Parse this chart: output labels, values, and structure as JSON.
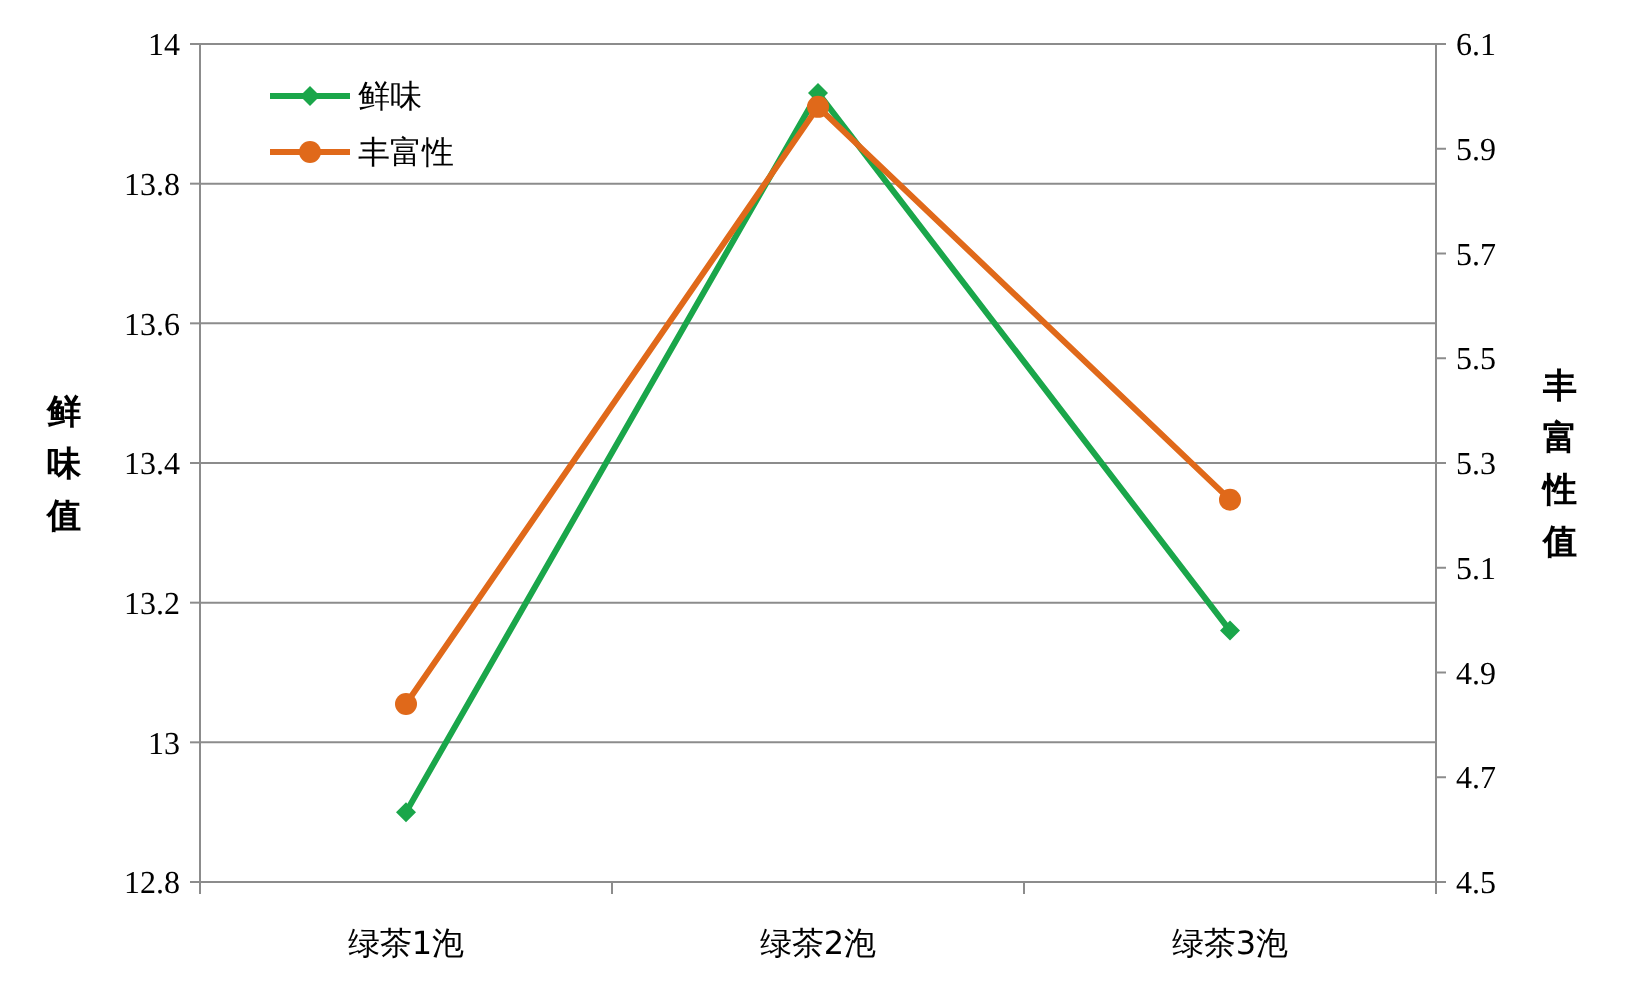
{
  "chart_data": {
    "type": "line",
    "categories": [
      "绿茶1泡",
      "绿茶2泡",
      "绿茶3泡"
    ],
    "series": [
      {
        "name": "鲜味",
        "color": "#1aa64a",
        "values": [
          12.9,
          13.93,
          13.16
        ],
        "marker": "diamond"
      },
      {
        "name": "丰富性",
        "color": "#e0691a",
        "values": [
          4.84,
          5.98,
          5.23
        ],
        "axis": "y2",
        "marker": "circle"
      }
    ],
    "ylabel": "鲜味值",
    "y2label": "丰富性值",
    "ylim": [
      12.8,
      14
    ],
    "yticks": [
      12.8,
      13,
      13.2,
      13.4,
      13.6,
      13.8,
      14
    ],
    "y2lim": [
      4.5,
      6.1
    ],
    "y2ticks": [
      4.5,
      4.7,
      4.9,
      5.1,
      5.3,
      5.5,
      5.7,
      5.9,
      6.1
    ],
    "grid": "y",
    "legend": "top left",
    "line_style": "solid"
  }
}
